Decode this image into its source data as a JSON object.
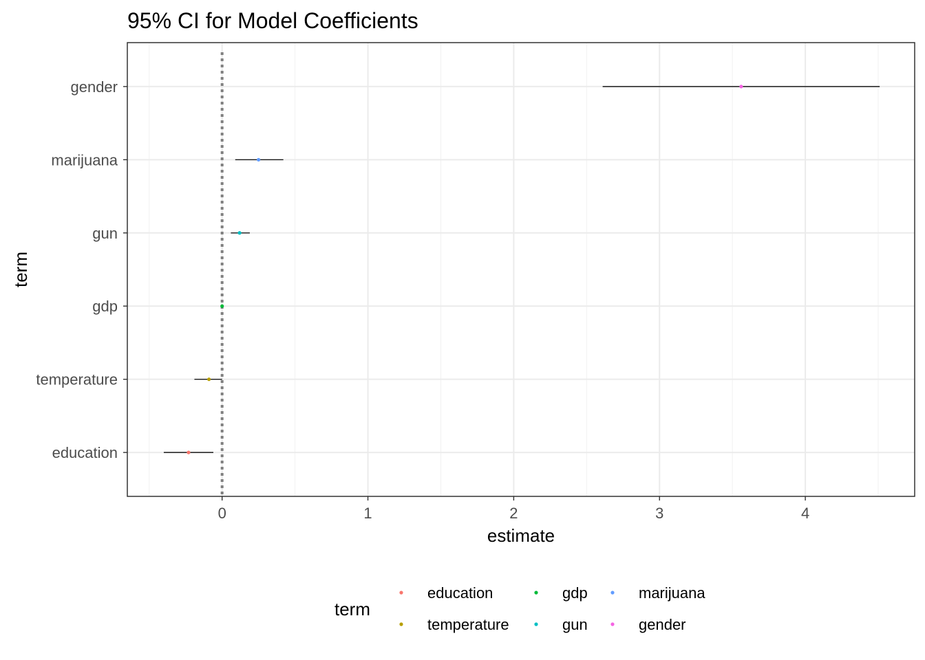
{
  "chart_data": {
    "type": "scatter",
    "title": "95% CI for Model Coefficients",
    "xlabel": "estimate",
    "ylabel": "term",
    "xlim": [
      -0.65,
      4.75
    ],
    "xticks": [
      0,
      1,
      2,
      3,
      4
    ],
    "grid": true,
    "reference_line": {
      "x": 0,
      "style": "dotted",
      "color": "#808080"
    },
    "categories": [
      "education",
      "temperature",
      "gdp",
      "gun",
      "marijuana",
      "gender"
    ],
    "points": [
      {
        "term": "education",
        "estimate": -0.23,
        "low": -0.4,
        "high": -0.06
      },
      {
        "term": "temperature",
        "estimate": -0.09,
        "low": -0.19,
        "high": 0.0
      },
      {
        "term": "gdp",
        "estimate": 0.0,
        "low": -0.01,
        "high": 0.01
      },
      {
        "term": "gun",
        "estimate": 0.12,
        "low": 0.06,
        "high": 0.19
      },
      {
        "term": "marijuana",
        "estimate": 0.25,
        "low": 0.09,
        "high": 0.42
      },
      {
        "term": "gender",
        "estimate": 3.56,
        "low": 2.61,
        "high": 4.51
      }
    ],
    "legend": {
      "title": "term",
      "placement": "bottom",
      "items": [
        {
          "label": "education",
          "color": "#F8766D"
        },
        {
          "label": "temperature",
          "color": "#B79F00"
        },
        {
          "label": "gdp",
          "color": "#00BA38"
        },
        {
          "label": "gun",
          "color": "#00BFC4"
        },
        {
          "label": "marijuana",
          "color": "#619CFF"
        },
        {
          "label": "gender",
          "color": "#F564E3"
        }
      ]
    }
  }
}
